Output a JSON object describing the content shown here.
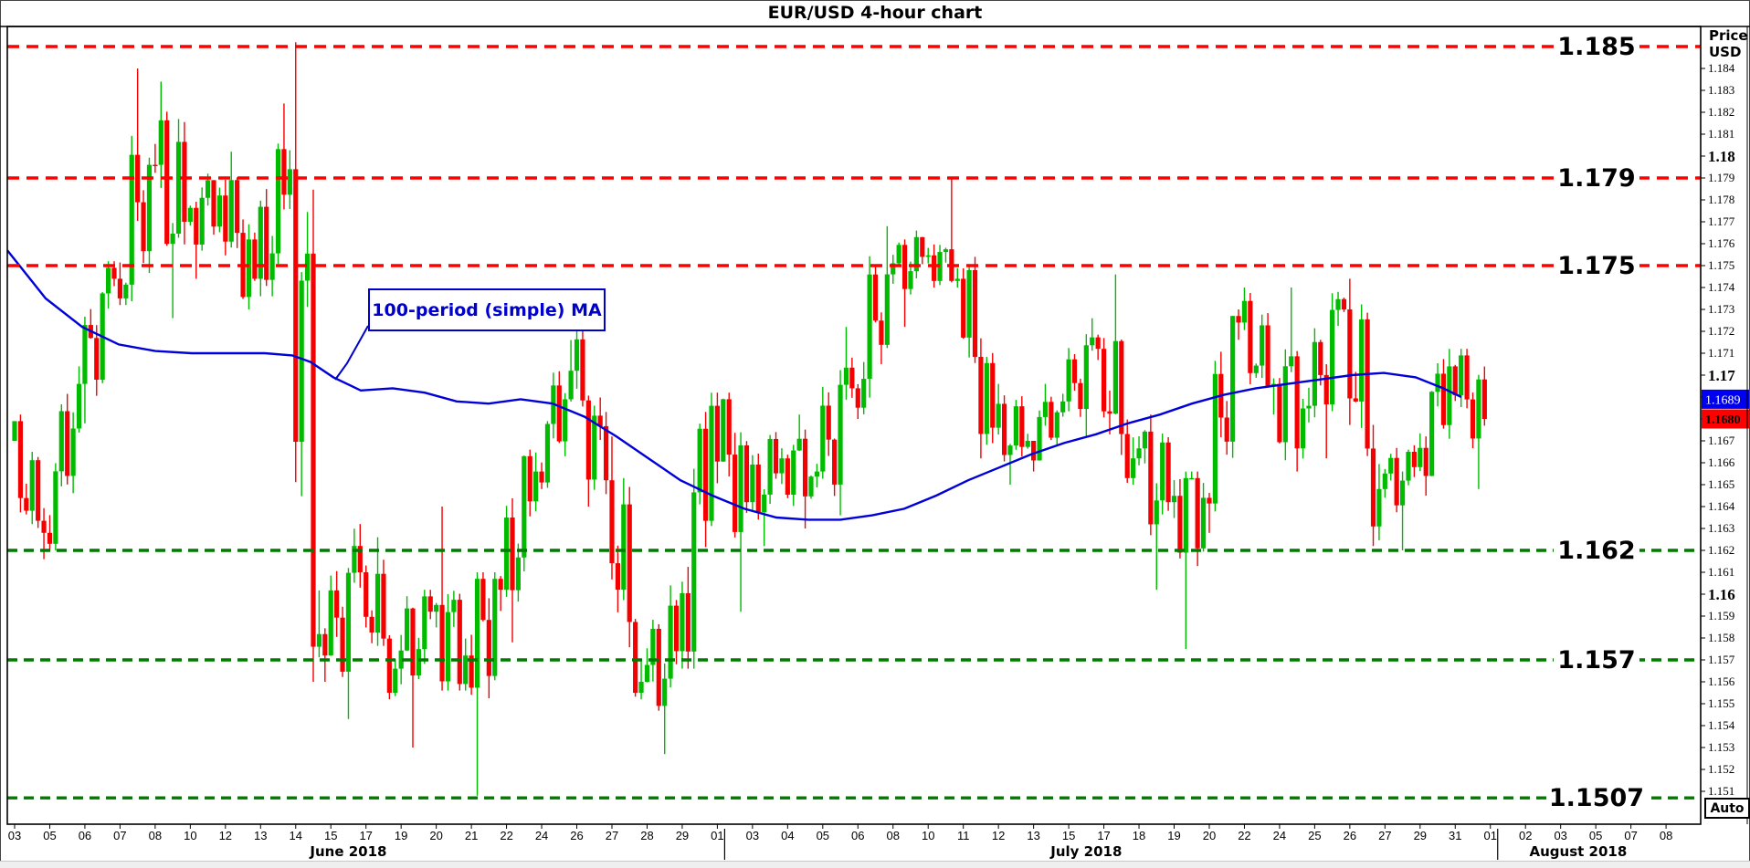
{
  "title": "EUR/USD 4-hour chart",
  "axis_right": {
    "title_line1": "Price",
    "title_line2": "USD",
    "ticks": [
      {
        "t": "1.151"
      },
      {
        "t": "1.152"
      },
      {
        "t": "1.153"
      },
      {
        "t": "1.154"
      },
      {
        "t": "1.155"
      },
      {
        "t": "1.156"
      },
      {
        "t": "1.157"
      },
      {
        "t": "1.158"
      },
      {
        "t": "1.159"
      },
      {
        "t": "1.16",
        "b": true
      },
      {
        "t": "1.161"
      },
      {
        "t": "1.162"
      },
      {
        "t": "1.163"
      },
      {
        "t": "1.164"
      },
      {
        "t": "1.165"
      },
      {
        "t": "1.166"
      },
      {
        "t": "1.167"
      },
      {
        "t": "1.168"
      },
      {
        "t": "1.169"
      },
      {
        "t": "1.17",
        "b": true
      },
      {
        "t": "1.171"
      },
      {
        "t": "1.172"
      },
      {
        "t": "1.173"
      },
      {
        "t": "1.174"
      },
      {
        "t": "1.175"
      },
      {
        "t": "1.176"
      },
      {
        "t": "1.177"
      },
      {
        "t": "1.178"
      },
      {
        "t": "1.179"
      },
      {
        "t": "1.18",
        "b": true
      },
      {
        "t": "1.181"
      },
      {
        "t": "1.182"
      },
      {
        "t": "1.183"
      },
      {
        "t": "1.184"
      }
    ],
    "auto_label": "Auto"
  },
  "badges": {
    "ma_tag": {
      "value": "1.1689",
      "bg": "#0000f0",
      "fg": "#ffffff"
    },
    "price_tag": {
      "value": "1.1680",
      "bg": "#ff0000",
      "fg": "#000000"
    }
  },
  "levels": {
    "resistance": {
      "color": "#ff0000",
      "items": [
        {
          "value": 1.185,
          "label": "1.185"
        },
        {
          "value": 1.179,
          "label": "1.179"
        },
        {
          "value": 1.175,
          "label": "1.175"
        }
      ]
    },
    "support": {
      "color": "#007a00",
      "items": [
        {
          "value": 1.162,
          "label": "1.162"
        },
        {
          "value": 1.157,
          "label": "1.157"
        },
        {
          "value": 1.1507,
          "label": "1.1507"
        }
      ]
    }
  },
  "ma_annotation": {
    "label": "100-period (simple) MA",
    "color": "#0000cc"
  },
  "axis_bottom": {
    "months": [
      {
        "label": "June 2018",
        "startIndex": 0,
        "count": 20
      },
      {
        "label": "July 2018",
        "startIndex": 20,
        "count": 22
      },
      {
        "label": "August 2018",
        "startIndex": 42,
        "count": 6
      }
    ]
  },
  "chart_data": {
    "type": "candlestick",
    "symbol": "EUR/USD",
    "timeframe": "4-hour",
    "ylim": [
      1.1495,
      1.1859
    ],
    "grid": false,
    "up_color": "#00bb00",
    "down_color": "#f50000",
    "ma_color": "#0000d8",
    "bars_per_day": 6,
    "daily": [
      {
        "d": "03",
        "o": 1.167,
        "h": 1.1682,
        "l": 1.1616,
        "c": 1.1628
      },
      {
        "d": "05",
        "o": 1.1628,
        "h": 1.1704,
        "l": 1.162,
        "c": 1.1696
      },
      {
        "d": "06",
        "o": 1.1696,
        "h": 1.1752,
        "l": 1.1678,
        "c": 1.1744
      },
      {
        "d": "07",
        "o": 1.1744,
        "h": 1.184,
        "l": 1.1732,
        "c": 1.1796
      },
      {
        "d": "08",
        "o": 1.1796,
        "h": 1.1834,
        "l": 1.1726,
        "c": 1.177
      },
      {
        "d": "10",
        "o": 1.177,
        "h": 1.1792,
        "l": 1.1744,
        "c": 1.1782
      },
      {
        "d": "12",
        "o": 1.1782,
        "h": 1.1802,
        "l": 1.173,
        "c": 1.1744
      },
      {
        "d": "13",
        "o": 1.1744,
        "h": 1.1824,
        "l": 1.1736,
        "c": 1.1794
      },
      {
        "d": "14",
        "o": 1.1794,
        "h": 1.1852,
        "l": 1.156,
        "c": 1.1572
      },
      {
        "d": "15",
        "o": 1.1572,
        "h": 1.1632,
        "l": 1.1543,
        "c": 1.161
      },
      {
        "d": "17",
        "o": 1.161,
        "h": 1.1626,
        "l": 1.1552,
        "c": 1.1566
      },
      {
        "d": "19",
        "o": 1.1566,
        "h": 1.1602,
        "l": 1.153,
        "c": 1.1592
      },
      {
        "d": "20",
        "o": 1.1592,
        "h": 1.164,
        "l": 1.1556,
        "c": 1.1572
      },
      {
        "d": "21",
        "o": 1.1572,
        "h": 1.161,
        "l": 1.1508,
        "c": 1.1602
      },
      {
        "d": "22",
        "o": 1.1602,
        "h": 1.1666,
        "l": 1.1578,
        "c": 1.1656
      },
      {
        "d": "24",
        "o": 1.1656,
        "h": 1.1716,
        "l": 1.1648,
        "c": 1.1702
      },
      {
        "d": "26",
        "o": 1.1702,
        "h": 1.1724,
        "l": 1.164,
        "c": 1.1652
      },
      {
        "d": "27",
        "o": 1.1652,
        "h": 1.1672,
        "l": 1.1552,
        "c": 1.156
      },
      {
        "d": "28",
        "o": 1.156,
        "h": 1.1604,
        "l": 1.1527,
        "c": 1.1574
      },
      {
        "d": "29",
        "o": 1.1574,
        "h": 1.1692,
        "l": 1.1566,
        "c": 1.1686
      },
      {
        "d": "01",
        "o": 1.1686,
        "h": 1.1692,
        "l": 1.1592,
        "c": 1.1642
      },
      {
        "d": "03",
        "o": 1.1642,
        "h": 1.1674,
        "l": 1.1622,
        "c": 1.1662
      },
      {
        "d": "04",
        "o": 1.1662,
        "h": 1.1682,
        "l": 1.163,
        "c": 1.1656
      },
      {
        "d": "05",
        "o": 1.1656,
        "h": 1.1722,
        "l": 1.1636,
        "c": 1.1694
      },
      {
        "d": "06",
        "o": 1.1694,
        "h": 1.1768,
        "l": 1.168,
        "c": 1.1746
      },
      {
        "d": "08",
        "o": 1.1746,
        "h": 1.1766,
        "l": 1.1722,
        "c": 1.1754
      },
      {
        "d": "10",
        "o": 1.1754,
        "h": 1.179,
        "l": 1.174,
        "c": 1.1744
      },
      {
        "d": "11",
        "o": 1.1744,
        "h": 1.1754,
        "l": 1.1662,
        "c": 1.1676
      },
      {
        "d": "12",
        "o": 1.1676,
        "h": 1.1696,
        "l": 1.165,
        "c": 1.167
      },
      {
        "d": "13",
        "o": 1.167,
        "h": 1.1696,
        "l": 1.1656,
        "c": 1.1688
      },
      {
        "d": "15",
        "o": 1.1688,
        "h": 1.1726,
        "l": 1.1672,
        "c": 1.1712
      },
      {
        "d": "17",
        "o": 1.1712,
        "h": 1.1746,
        "l": 1.165,
        "c": 1.1662
      },
      {
        "d": "18",
        "o": 1.1662,
        "h": 1.1682,
        "l": 1.1602,
        "c": 1.1642
      },
      {
        "d": "19",
        "o": 1.1642,
        "h": 1.1656,
        "l": 1.1575,
        "c": 1.1644
      },
      {
        "d": "20",
        "o": 1.1644,
        "h": 1.173,
        "l": 1.1628,
        "c": 1.1724
      },
      {
        "d": "22",
        "o": 1.1724,
        "h": 1.174,
        "l": 1.1682,
        "c": 1.1696
      },
      {
        "d": "24",
        "o": 1.1696,
        "h": 1.174,
        "l": 1.1656,
        "c": 1.1686
      },
      {
        "d": "25",
        "o": 1.1686,
        "h": 1.1738,
        "l": 1.1662,
        "c": 1.173
      },
      {
        "d": "26",
        "o": 1.173,
        "h": 1.1744,
        "l": 1.1622,
        "c": 1.1648
      },
      {
        "d": "27",
        "o": 1.1648,
        "h": 1.1668,
        "l": 1.162,
        "c": 1.1658
      },
      {
        "d": "29",
        "o": 1.1658,
        "h": 1.1712,
        "l": 1.1645,
        "c": 1.1704
      },
      {
        "d": "31",
        "o": 1.1704,
        "h": 1.1712,
        "l": 1.1648,
        "c": 1.168
      }
    ],
    "future_dates": [
      "01",
      "02",
      "03",
      "05",
      "07",
      "08"
    ],
    "ma_path": [
      [
        8,
        1.1757
      ],
      [
        50,
        1.1735
      ],
      [
        90,
        1.1722
      ],
      [
        130,
        1.1714
      ],
      [
        170,
        1.1711
      ],
      [
        210,
        1.171
      ],
      [
        250,
        1.171
      ],
      [
        290,
        1.171
      ],
      [
        320,
        1.1709
      ],
      [
        340,
        1.1706
      ],
      [
        365,
        1.1699
      ],
      [
        395,
        1.1693
      ],
      [
        430,
        1.1694
      ],
      [
        465,
        1.1692
      ],
      [
        500,
        1.1688
      ],
      [
        535,
        1.1687
      ],
      [
        570,
        1.1689
      ],
      [
        605,
        1.1687
      ],
      [
        640,
        1.1681
      ],
      [
        675,
        1.1672
      ],
      [
        710,
        1.1662
      ],
      [
        745,
        1.1652
      ],
      [
        780,
        1.1645
      ],
      [
        815,
        1.1639
      ],
      [
        850,
        1.1635
      ],
      [
        885,
        1.1634
      ],
      [
        920,
        1.1634
      ],
      [
        955,
        1.1636
      ],
      [
        990,
        1.1639
      ],
      [
        1025,
        1.1645
      ],
      [
        1060,
        1.1652
      ],
      [
        1095,
        1.1658
      ],
      [
        1130,
        1.1664
      ],
      [
        1165,
        1.1669
      ],
      [
        1200,
        1.1673
      ],
      [
        1235,
        1.1678
      ],
      [
        1270,
        1.1682
      ],
      [
        1305,
        1.1687
      ],
      [
        1340,
        1.1691
      ],
      [
        1375,
        1.1694
      ],
      [
        1410,
        1.1696
      ],
      [
        1445,
        1.1698
      ],
      [
        1480,
        1.17
      ],
      [
        1515,
        1.1701
      ],
      [
        1550,
        1.1699
      ],
      [
        1580,
        1.1694
      ],
      [
        1600,
        1.169
      ]
    ]
  }
}
